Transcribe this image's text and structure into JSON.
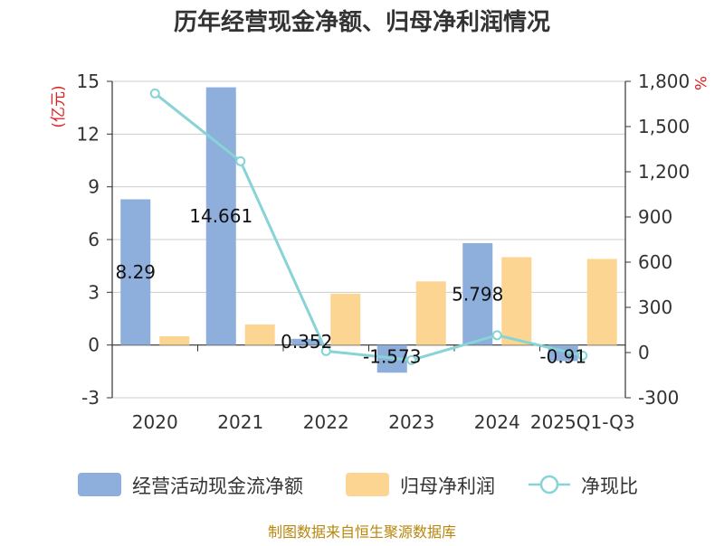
{
  "chart_data": {
    "type": "bar",
    "title": "历年经营现金净额、归母净利润情况",
    "categories": [
      "2020",
      "2021",
      "2022",
      "2023",
      "2024",
      "2025Q1-Q3"
    ],
    "y_left": {
      "unit": "(亿元)",
      "min": -3,
      "max": 15,
      "ticks": [
        -3,
        0,
        3,
        6,
        9,
        12,
        15
      ],
      "tick_labels": [
        "-3",
        "0",
        "3",
        "6",
        "9",
        "12",
        "15"
      ]
    },
    "y_right": {
      "unit": "%",
      "min": -300,
      "max": 1800,
      "ticks": [
        -300,
        0,
        300,
        600,
        900,
        1200,
        1500,
        1800
      ],
      "tick_labels": [
        "-300",
        "0",
        "300",
        "600",
        "900",
        "1,200",
        "1,500",
        "1,800"
      ]
    },
    "series": [
      {
        "name": "经营活动现金流净额",
        "type": "bar",
        "axis": "left",
        "color": "#8eaedb",
        "values": [
          8.29,
          14.661,
          0.352,
          -1.573,
          5.798,
          -0.91
        ],
        "labels": [
          "8.29",
          "14.661",
          "0.352",
          "-1.573",
          "5.798",
          "-0.91"
        ]
      },
      {
        "name": "归母净利润",
        "type": "bar",
        "axis": "left",
        "color": "#fdd593",
        "values": [
          0.5,
          1.17,
          2.92,
          3.62,
          5.0,
          4.9
        ]
      },
      {
        "name": "净现比",
        "type": "line",
        "axis": "right",
        "color": "#87d3d6",
        "values": [
          1720,
          1270,
          10,
          -50,
          115,
          -20
        ]
      }
    ],
    "grid": true,
    "legend_position": "bottom",
    "source": "制图数据来自恒生聚源数据库"
  }
}
